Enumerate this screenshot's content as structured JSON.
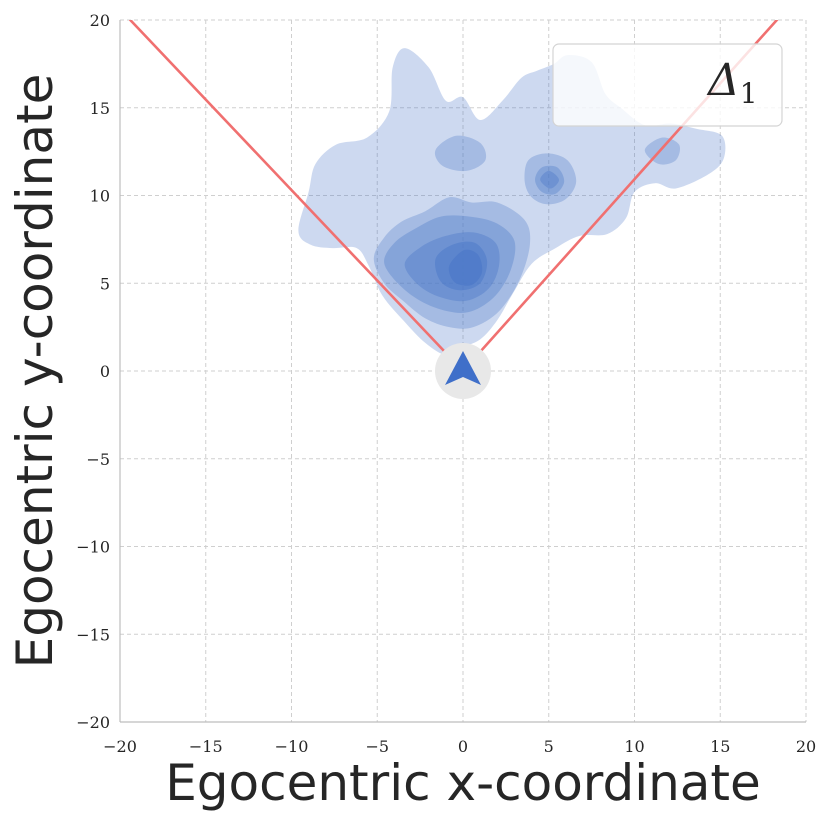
{
  "chart_data": {
    "type": "kde-contour",
    "xlabel": "Egocentric x-coordinate",
    "ylabel": "Egocentric y-coordinate",
    "xlim": [
      -20,
      20
    ],
    "ylim": [
      -20,
      20
    ],
    "xticks": [
      -20,
      -15,
      -10,
      -5,
      0,
      5,
      10,
      15,
      20
    ],
    "yticks": [
      -20,
      -15,
      -10,
      -5,
      0,
      5,
      10,
      15,
      20
    ],
    "xtick_labels": [
      "−20",
      "−15",
      "−10",
      "−5",
      "0",
      "5",
      "10",
      "15",
      "20"
    ],
    "ytick_labels": [
      "−20",
      "−15",
      "−10",
      "−5",
      "0",
      "5",
      "10",
      "15",
      "20"
    ],
    "grid": true,
    "legend": {
      "label": "Δ",
      "subscript": "1",
      "placement": "top-right"
    },
    "density_color": "#4a78c8",
    "fov_line_color": "#f07070",
    "agent_color": "#3f6fc9",
    "agent_background": "#e8e8e8",
    "fov_lines": [
      {
        "points": [
          [
            0,
            0
          ],
          [
            -19.4,
            20
          ]
        ]
      },
      {
        "points": [
          [
            0,
            0
          ],
          [
            18.3,
            20
          ]
        ]
      }
    ],
    "agent_marker": {
      "x": 0,
      "y": 0
    },
    "density_levels": [
      {
        "level": 1,
        "opacity": 0.28,
        "blobs": [
          [
            [
              -9.6,
              8.0
            ],
            [
              -9.0,
              10.2
            ],
            [
              -8.6,
              11.8
            ],
            [
              -7.4,
              12.9
            ],
            [
              -5.6,
              13.3
            ],
            [
              -4.3,
              14.8
            ],
            [
              -4.1,
              17.3
            ],
            [
              -3.4,
              18.4
            ],
            [
              -2.0,
              17.3
            ],
            [
              -1.0,
              15.4
            ],
            [
              0.0,
              15.6
            ],
            [
              1.0,
              14.3
            ],
            [
              2.3,
              15.4
            ],
            [
              3.4,
              16.7
            ],
            [
              4.3,
              17.1
            ],
            [
              5.3,
              17.5
            ],
            [
              6.1,
              18.0
            ],
            [
              7.5,
              17.6
            ],
            [
              8.3,
              15.8
            ],
            [
              9.2,
              15.0
            ],
            [
              10.6,
              14.0
            ],
            [
              12.1,
              14.1
            ],
            [
              13.6,
              13.8
            ],
            [
              15.1,
              13.4
            ],
            [
              15.2,
              12.1
            ],
            [
              14.3,
              11.2
            ],
            [
              12.4,
              10.4
            ],
            [
              11.2,
              10.7
            ],
            [
              10.0,
              10.2
            ],
            [
              9.5,
              8.7
            ],
            [
              8.4,
              7.8
            ],
            [
              6.8,
              7.7
            ],
            [
              5.4,
              7.0
            ],
            [
              4.0,
              6.1
            ],
            [
              2.9,
              4.4
            ],
            [
              2.0,
              2.9
            ],
            [
              1.0,
              1.8
            ],
            [
              -0.2,
              1.3
            ],
            [
              -1.0,
              0.9
            ],
            [
              -2.2,
              1.6
            ],
            [
              -3.4,
              2.8
            ],
            [
              -4.7,
              4.3
            ],
            [
              -5.5,
              6.0
            ],
            [
              -6.2,
              7.0
            ],
            [
              -7.6,
              7.0
            ],
            [
              -8.9,
              7.2
            ]
          ]
        ]
      },
      {
        "level": 2,
        "opacity": 0.3,
        "blobs": [
          [
            [
              -5.2,
              6.4
            ],
            [
              -4.6,
              7.6
            ],
            [
              -3.6,
              8.5
            ],
            [
              -2.2,
              9.1
            ],
            [
              -0.8,
              9.9
            ],
            [
              0.5,
              9.6
            ],
            [
              2.0,
              9.6
            ],
            [
              3.6,
              8.6
            ],
            [
              3.9,
              7.2
            ],
            [
              3.3,
              5.2
            ],
            [
              2.1,
              3.4
            ],
            [
              0.6,
              2.5
            ],
            [
              -0.8,
              2.5
            ],
            [
              -2.2,
              3.0
            ],
            [
              -3.5,
              4.0
            ],
            [
              -4.6,
              5.0
            ]
          ],
          [
            [
              3.6,
              10.8
            ],
            [
              3.8,
              12.0
            ],
            [
              4.9,
              12.4
            ],
            [
              6.1,
              12.0
            ],
            [
              6.6,
              10.8
            ],
            [
              6.0,
              9.8
            ],
            [
              4.9,
              9.5
            ],
            [
              4.0,
              9.9
            ]
          ],
          [
            [
              -1.6,
              12.6
            ],
            [
              -0.4,
              13.4
            ],
            [
              1.0,
              13.0
            ],
            [
              1.3,
              12.0
            ],
            [
              0.2,
              11.4
            ],
            [
              -1.2,
              11.7
            ]
          ],
          [
            [
              10.6,
              12.6
            ],
            [
              11.6,
              13.3
            ],
            [
              12.6,
              12.9
            ],
            [
              12.4,
              12.0
            ],
            [
              11.4,
              11.8
            ]
          ]
        ]
      },
      {
        "level": 3,
        "opacity": 0.34,
        "blobs": [
          [
            [
              -4.6,
              6.2
            ],
            [
              -4.0,
              7.3
            ],
            [
              -2.8,
              8.1
            ],
            [
              -1.3,
              8.8
            ],
            [
              0.4,
              8.8
            ],
            [
              2.0,
              8.4
            ],
            [
              3.0,
              7.4
            ],
            [
              2.8,
              5.8
            ],
            [
              1.9,
              4.3
            ],
            [
              0.5,
              3.4
            ],
            [
              -0.9,
              3.4
            ],
            [
              -2.5,
              4.0
            ],
            [
              -3.8,
              5.0
            ]
          ],
          [
            [
              4.2,
              10.9
            ],
            [
              4.6,
              11.6
            ],
            [
              5.5,
              11.6
            ],
            [
              5.9,
              10.8
            ],
            [
              5.4,
              10.1
            ],
            [
              4.6,
              10.2
            ]
          ]
        ]
      },
      {
        "level": 4,
        "opacity": 0.4,
        "blobs": [
          [
            [
              -3.4,
              6.1
            ],
            [
              -2.4,
              7.1
            ],
            [
              -1.0,
              7.7
            ],
            [
              0.6,
              7.9
            ],
            [
              1.9,
              7.3
            ],
            [
              2.1,
              6.0
            ],
            [
              1.5,
              4.7
            ],
            [
              0.2,
              4.0
            ],
            [
              -1.3,
              4.2
            ],
            [
              -2.6,
              4.9
            ]
          ],
          [
            [
              4.5,
              10.9
            ],
            [
              5.0,
              11.4
            ],
            [
              5.6,
              10.9
            ],
            [
              5.1,
              10.4
            ]
          ]
        ]
      },
      {
        "level": 5,
        "opacity": 0.48,
        "blobs": [
          [
            [
              -1.6,
              6.4
            ],
            [
              -0.6,
              7.2
            ],
            [
              0.7,
              7.3
            ],
            [
              1.4,
              6.3
            ],
            [
              1.0,
              5.0
            ],
            [
              -0.2,
              4.6
            ],
            [
              -1.3,
              5.1
            ]
          ]
        ]
      },
      {
        "level": 6,
        "opacity": 0.62,
        "blobs": [
          [
            [
              -0.7,
              6.2
            ],
            [
              0.1,
              6.9
            ],
            [
              0.9,
              6.6
            ],
            [
              1.1,
              5.6
            ],
            [
              0.5,
              4.9
            ],
            [
              -0.4,
              5.0
            ],
            [
              -0.8,
              5.6
            ]
          ]
        ]
      }
    ]
  }
}
